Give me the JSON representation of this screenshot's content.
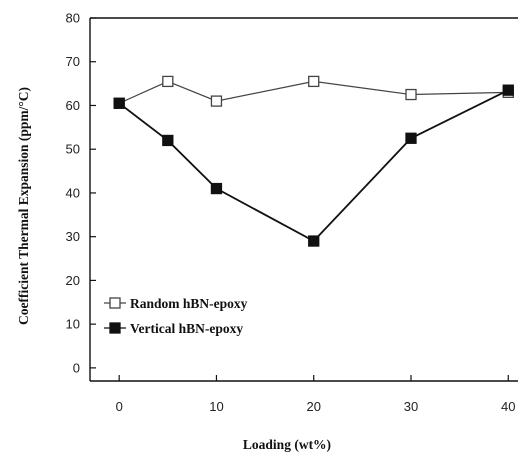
{
  "chart_data": {
    "type": "line",
    "title": "",
    "xlabel": "Loading (wt%)",
    "ylabel": "Coefficient Thermal Expansion (ppm/°C)",
    "x": [
      0,
      5,
      10,
      20,
      30,
      40
    ],
    "xticks": [
      "0",
      "10",
      "20",
      "30",
      "40"
    ],
    "xtick_values": [
      0,
      10,
      20,
      30,
      40
    ],
    "yticks": [
      "0",
      "10",
      "20",
      "30",
      "40",
      "50",
      "60",
      "70",
      "80"
    ],
    "ytick_values": [
      0,
      10,
      20,
      30,
      40,
      50,
      60,
      70,
      80
    ],
    "xlim": [
      -3,
      41
    ],
    "ylim": [
      -3,
      80
    ],
    "grid": false,
    "legend_position": "bottom-left",
    "series": [
      {
        "name": "Random hBN-epoxy",
        "marker": "open-square",
        "line_style": "solid",
        "color": "#444444",
        "values": [
          60.5,
          65.5,
          61,
          65.5,
          62.5,
          63
        ]
      },
      {
        "name": "Vertical hBN-epoxy",
        "marker": "filled-square",
        "line_style": "solid",
        "color": "#111111",
        "values": [
          60.5,
          52,
          41,
          29,
          52.5,
          63.5
        ]
      }
    ],
    "legend": [
      {
        "prefix": "-□-",
        "label": "Random hBN-epoxy"
      },
      {
        "prefix": "-■-",
        "label": "Vertical hBN-epoxy"
      }
    ]
  }
}
